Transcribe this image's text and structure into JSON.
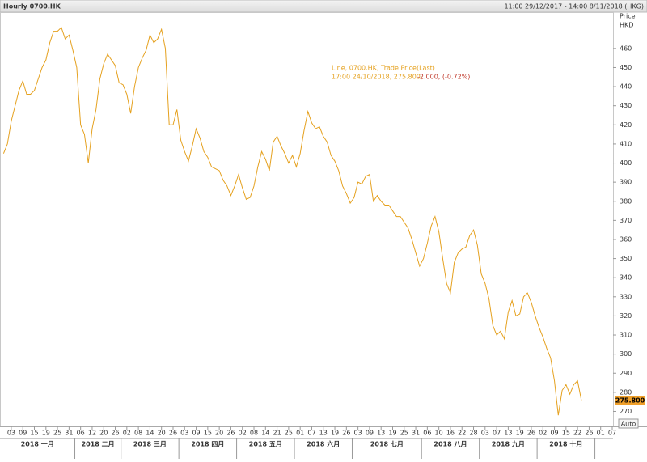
{
  "chart_data": {
    "type": "line",
    "title": "Hourly 0700.HK",
    "range_text": "11:00 29/12/2017 - 14:00 8/11/2018 (HKG)",
    "y_label": "Price",
    "y_unit": "HKD",
    "legend_line1": "Line, 0700.HK, Trade Price(Last)",
    "legend_line2": "17:00 24/10/2018, 275.800,",
    "legend_change": "-2.000, (-0.72%)",
    "last_value": 275.8,
    "last_value_label": "275.800",
    "auto_label": "Auto",
    "color": "#e5a11f",
    "ylim": [
      263,
      479
    ],
    "yticks": [
      270,
      280,
      290,
      300,
      310,
      320,
      330,
      340,
      350,
      360,
      370,
      380,
      390,
      400,
      410,
      420,
      430,
      440,
      450,
      460
    ],
    "grid": false,
    "months": [
      "2018 一月",
      "2018 二月",
      "2018 三月",
      "2018 四月",
      "2018 五月",
      "2018 六月",
      "2018 七月",
      "2018 八月",
      "2018 九月",
      "2018 十月"
    ],
    "categories": [
      null,
      null,
      "03",
      null,
      null,
      "09",
      null,
      null,
      "15",
      null,
      null,
      "19",
      null,
      null,
      "25",
      null,
      null,
      "31",
      null,
      null,
      "06",
      null,
      null,
      "12",
      null,
      null,
      "20",
      null,
      null,
      "26",
      null,
      null,
      "02",
      null,
      null,
      "08",
      null,
      null,
      "14",
      null,
      null,
      "20",
      null,
      null,
      "26",
      null,
      null,
      "03",
      null,
      null,
      "09",
      null,
      null,
      "15",
      null,
      null,
      "20",
      null,
      null,
      "26",
      null,
      null,
      "02",
      null,
      null,
      "08",
      null,
      null,
      "14",
      null,
      null,
      "21",
      null,
      null,
      "25",
      null,
      null,
      "01",
      null,
      null,
      "07",
      null,
      null,
      "13",
      null,
      null,
      "19",
      null,
      null,
      "26",
      null,
      null,
      "03",
      null,
      null,
      "09",
      null,
      null,
      "13",
      null,
      null,
      "19",
      null,
      null,
      "25",
      null,
      null,
      "31",
      null,
      null,
      "06",
      null,
      null,
      "10",
      null,
      null,
      "16",
      null,
      null,
      "22",
      null,
      null,
      "28",
      null,
      null,
      "03",
      null,
      null,
      "07",
      null,
      null,
      "13",
      null,
      null,
      "19",
      null,
      null,
      "26",
      null,
      null,
      "02",
      null,
      null,
      "09",
      null,
      null,
      "15",
      null,
      null,
      "22",
      null,
      null,
      "26",
      null,
      null,
      "01",
      null,
      null,
      "07"
    ],
    "values": [
      405,
      410,
      422,
      430,
      438,
      443,
      436,
      436,
      438,
      444,
      450,
      454,
      463,
      469,
      469,
      471,
      465,
      467,
      459,
      450,
      420,
      415,
      400,
      418,
      428,
      444,
      452,
      457,
      454,
      451,
      442,
      441,
      436,
      426,
      440,
      450,
      455,
      459,
      467,
      463,
      465,
      470,
      460,
      420,
      420,
      428,
      412,
      406,
      401,
      409,
      418,
      413,
      406,
      403,
      398,
      397,
      396,
      391,
      388,
      383,
      388,
      394,
      387,
      381,
      382,
      388,
      398,
      406,
      402,
      396,
      411,
      414,
      409,
      405,
      400,
      404,
      398,
      405,
      417,
      427,
      421,
      418,
      419,
      414,
      411,
      404,
      401,
      396,
      388,
      384,
      379,
      382,
      390,
      389,
      393,
      394,
      380,
      383,
      380,
      378,
      378,
      375,
      372,
      372,
      369,
      366,
      360,
      353,
      346,
      350,
      358,
      367,
      372,
      364,
      350,
      337,
      332,
      348,
      353,
      355,
      356,
      362,
      365,
      357,
      342,
      337,
      329,
      315,
      310,
      312,
      308,
      322,
      328,
      320,
      321,
      330,
      332,
      327,
      320,
      314,
      309,
      303,
      298,
      286,
      268,
      281,
      284,
      279,
      284,
      286,
      275.8,
      null,
      null,
      null,
      null,
      null,
      null,
      null,
      null
    ]
  }
}
